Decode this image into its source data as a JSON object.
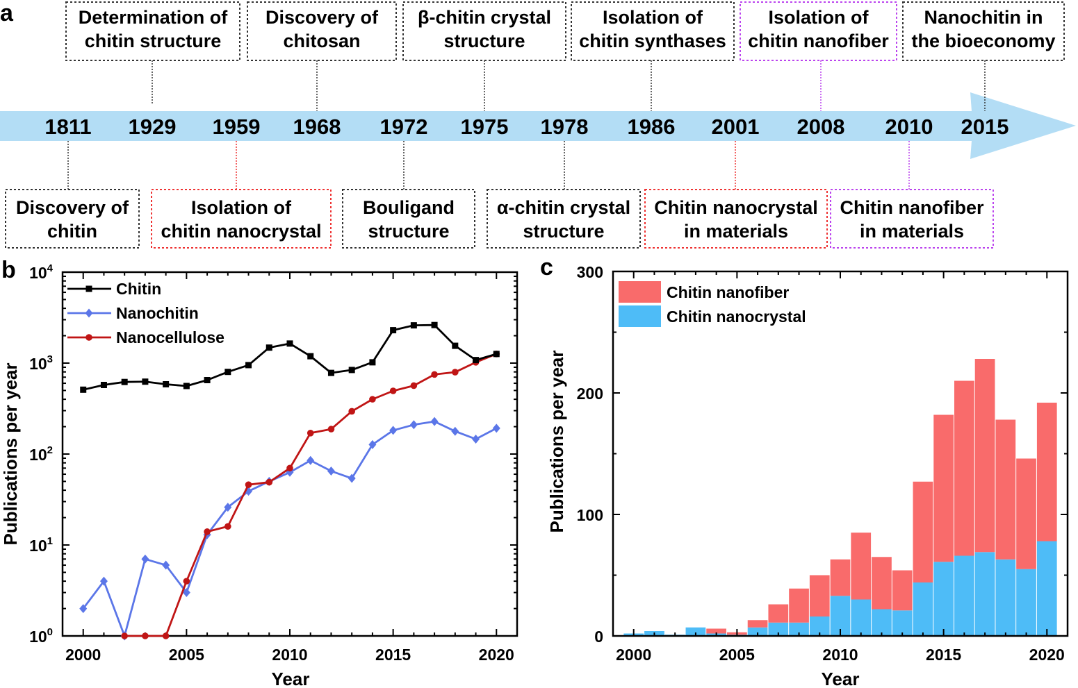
{
  "panel_labels": {
    "a": "a",
    "b": "b",
    "c": "c"
  },
  "colors": {
    "arrow": "#b3ddf5",
    "black_box": "#333333",
    "red_box": "#ee3333",
    "purple_box": "#bb44ee",
    "chitin": "#000000",
    "nanochitin": "#5b76e8",
    "nanocellulose": "#c01515",
    "nanofiber_bar": "#f96b6b",
    "nanocrystal_bar": "#4ebcf7"
  },
  "timeline": {
    "years": [
      "1811",
      "1929",
      "1959",
      "1968",
      "1972",
      "1975",
      "1978",
      "1986",
      "2001",
      "2008",
      "2010",
      "2015"
    ],
    "top_events": [
      {
        "line1": "Determination of",
        "line2": "chitin structure",
        "year": "1929",
        "style": "black"
      },
      {
        "line1": "Discovery of",
        "line2": "chitosan",
        "year": "1968",
        "style": "black"
      },
      {
        "line1": "β-chitin crystal",
        "line2": "structure",
        "year": "1975",
        "style": "black"
      },
      {
        "line1": "Isolation of",
        "line2": "chitin synthases",
        "year": "1986",
        "style": "black"
      },
      {
        "line1": "Isolation of",
        "line2": "chitin nanofiber",
        "year": "2008",
        "style": "purple"
      },
      {
        "line1": "Nanochitin in",
        "line2": "the bioeconomy",
        "year": "2015",
        "style": "black"
      }
    ],
    "bottom_events": [
      {
        "line1": "Discovery of",
        "line2": "chitin",
        "year": "1811",
        "style": "black"
      },
      {
        "line1": "Isolation of",
        "line2": "chitin nanocrystal",
        "year": "1959",
        "style": "red"
      },
      {
        "line1": "Bouligand",
        "line2": "structure",
        "year": "1972",
        "style": "black"
      },
      {
        "line1": "α-chitin crystal",
        "line2": "structure",
        "year": "1978",
        "style": "black"
      },
      {
        "line1": "Chitin nanocrystal",
        "line2": "in materials",
        "year": "2001",
        "style": "red"
      },
      {
        "line1": "Chitin nanofiber",
        "line2": "in materials",
        "year": "2010",
        "style": "purple"
      }
    ]
  },
  "chart_data": [
    {
      "panel": "b",
      "type": "line",
      "title": "",
      "xlabel": "Year",
      "ylabel": "Publications per year",
      "yscale": "log",
      "xlim": [
        1999,
        2021
      ],
      "ylim": [
        1,
        10000
      ],
      "xticks": [
        2000,
        2005,
        2010,
        2015,
        2020
      ],
      "yticks": [
        {
          "value": 1,
          "base": "10",
          "exp": "0"
        },
        {
          "value": 10,
          "base": "10",
          "exp": "1"
        },
        {
          "value": 100,
          "base": "10",
          "exp": "2"
        },
        {
          "value": 1000,
          "base": "10",
          "exp": "3"
        },
        {
          "value": 10000,
          "base": "10",
          "exp": "4"
        }
      ],
      "legend_position": "top-left",
      "x": [
        2000,
        2001,
        2002,
        2003,
        2004,
        2005,
        2006,
        2007,
        2008,
        2009,
        2010,
        2011,
        2012,
        2013,
        2014,
        2015,
        2016,
        2017,
        2018,
        2019,
        2020
      ],
      "series": [
        {
          "name": "Chitin",
          "marker": "square",
          "color_key": "chitin",
          "values": [
            510,
            575,
            620,
            625,
            585,
            560,
            650,
            800,
            950,
            1480,
            1640,
            1190,
            780,
            840,
            1020,
            2300,
            2600,
            2620,
            1550,
            1080,
            1260
          ]
        },
        {
          "name": "Nanochitin",
          "marker": "diamond",
          "color_key": "nanochitin",
          "values": [
            2,
            4,
            1,
            7,
            6,
            3,
            13,
            26,
            39,
            50,
            63,
            85,
            65,
            54,
            127,
            182,
            210,
            228,
            178,
            146,
            192
          ]
        },
        {
          "name": "Nanocellulose",
          "marker": "circle",
          "color_key": "nanocellulose",
          "values": [
            null,
            null,
            1,
            1,
            1,
            4,
            14,
            16,
            46,
            49,
            70,
            170,
            188,
            295,
            400,
            495,
            565,
            750,
            795,
            1020,
            1260
          ]
        }
      ]
    },
    {
      "panel": "c",
      "type": "bar",
      "stacked": true,
      "title": "",
      "xlabel": "Year",
      "ylabel": "Publications per year",
      "xlim": [
        1999,
        2021
      ],
      "ylim": [
        0,
        300
      ],
      "xticks": [
        2000,
        2005,
        2010,
        2015,
        2020
      ],
      "yticks": [
        0,
        100,
        200,
        300
      ],
      "legend_position": "top-left",
      "categories": [
        2000,
        2001,
        2002,
        2003,
        2004,
        2005,
        2006,
        2007,
        2008,
        2009,
        2010,
        2011,
        2012,
        2013,
        2014,
        2015,
        2016,
        2017,
        2018,
        2019,
        2020
      ],
      "series": [
        {
          "name": "Chitin nanocrystal",
          "color_key": "nanocrystal_bar",
          "values": [
            2,
            4,
            1,
            7,
            2,
            1,
            7,
            11,
            11,
            16,
            33,
            30,
            22,
            21,
            44,
            61,
            66,
            69,
            63,
            55,
            78
          ]
        },
        {
          "name": "Chitin nanofiber",
          "color_key": "nanofiber_bar",
          "values": [
            0,
            0,
            0,
            0,
            4,
            2,
            6,
            15,
            28,
            34,
            30,
            55,
            43,
            33,
            83,
            121,
            144,
            159,
            115,
            91,
            114
          ]
        }
      ],
      "legend_order": [
        "Chitin nanofiber",
        "Chitin nanocrystal"
      ]
    }
  ]
}
